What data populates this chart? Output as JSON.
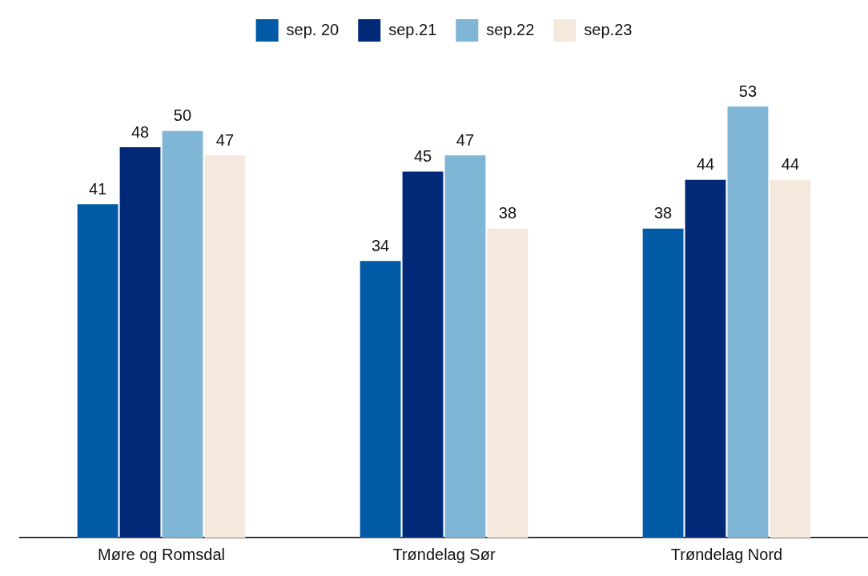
{
  "chart_data": {
    "type": "bar",
    "categories": [
      "Møre og Romsdal",
      "Trøndelag Sør",
      "Trøndelag Nord"
    ],
    "series": [
      {
        "name": "sep. 20",
        "color": "#005aa5",
        "values": [
          41,
          34,
          38
        ]
      },
      {
        "name": "sep.21",
        "color": "#002a78",
        "values": [
          48,
          45,
          44
        ]
      },
      {
        "name": "sep.22",
        "color": "#7fb5d5",
        "values": [
          50,
          47,
          53
        ]
      },
      {
        "name": "sep.23",
        "color": "#f5e8dc",
        "values": [
          47,
          38,
          44
        ]
      }
    ],
    "data_labels": true,
    "legend": "top",
    "grid": false,
    "tick_labels": "x"
  }
}
